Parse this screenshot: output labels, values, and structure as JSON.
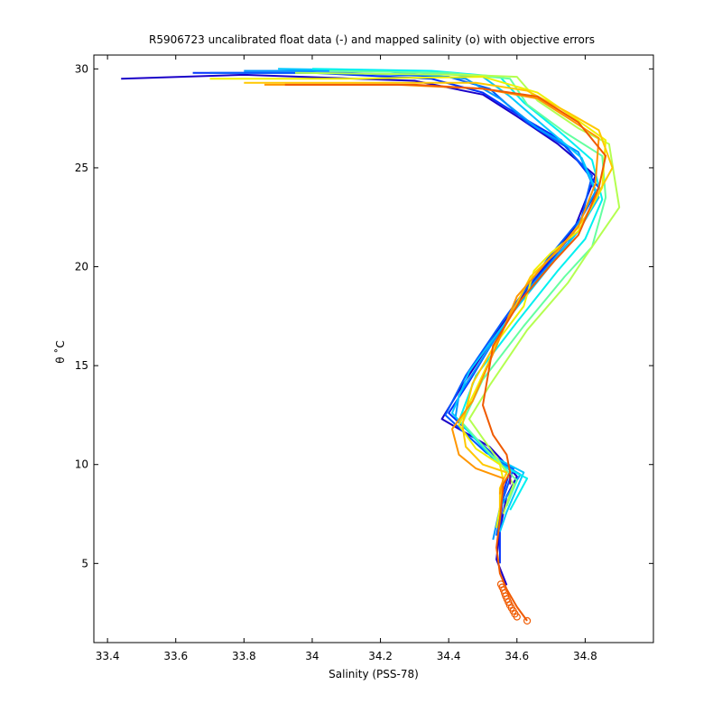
{
  "chart_data": {
    "type": "line",
    "title": "R5906723 uncalibrated float data (-) and mapped salinity (o) with objective errors",
    "xlabel": "Salinity (PSS-78)",
    "ylabel": "θ ˚C",
    "xlim": [
      33.36,
      35.0
    ],
    "ylim": [
      1.0,
      30.7
    ],
    "xticks": [
      33.4,
      33.6,
      33.8,
      34.0,
      34.2,
      34.4,
      34.6,
      34.8
    ],
    "xtick_labels": [
      "33.4",
      "33.6",
      "33.8",
      "34",
      "34.2",
      "34.4",
      "34.6",
      "34.8"
    ],
    "yticks": [
      5,
      10,
      15,
      20,
      25,
      30
    ],
    "ytick_labels": [
      "5",
      "10",
      "15",
      "20",
      "25",
      "30"
    ],
    "grid": false,
    "series": [
      {
        "color": "#1a00c8",
        "points": [
          [
            33.44,
            29.5
          ],
          [
            33.8,
            29.7
          ],
          [
            34.3,
            29.4
          ],
          [
            34.5,
            28.7
          ],
          [
            34.6,
            27.6
          ],
          [
            34.72,
            26.2
          ],
          [
            34.83,
            24.6
          ],
          [
            34.77,
            22.0
          ],
          [
            34.68,
            20.0
          ],
          [
            34.55,
            16.9
          ],
          [
            34.44,
            14.0
          ],
          [
            34.38,
            12.3
          ],
          [
            34.52,
            10.9
          ],
          [
            34.6,
            9.4
          ],
          [
            34.57,
            8.4
          ],
          [
            34.55,
            6.7
          ],
          [
            34.54,
            5.2
          ],
          [
            34.57,
            3.9
          ]
        ]
      },
      {
        "color": "#0032ff",
        "points": [
          [
            33.65,
            29.8
          ],
          [
            34.0,
            29.8
          ],
          [
            34.35,
            29.5
          ],
          [
            34.5,
            28.8
          ],
          [
            34.62,
            27.5
          ],
          [
            34.73,
            26.4
          ],
          [
            34.84,
            24.0
          ],
          [
            34.76,
            21.6
          ],
          [
            34.66,
            19.5
          ],
          [
            34.54,
            16.5
          ],
          [
            34.46,
            14.2
          ],
          [
            34.4,
            12.6
          ],
          [
            34.5,
            11.0
          ],
          [
            34.58,
            9.7
          ],
          [
            34.56,
            8.6
          ],
          [
            34.55,
            6.8
          ],
          [
            34.55,
            5.0
          ]
        ]
      },
      {
        "color": "#005aff",
        "points": [
          [
            33.7,
            29.8
          ],
          [
            34.1,
            29.8
          ],
          [
            34.4,
            29.6
          ],
          [
            34.52,
            29.0
          ],
          [
            34.63,
            27.3
          ],
          [
            34.74,
            26.1
          ],
          [
            34.82,
            24.6
          ],
          [
            34.79,
            22.5
          ],
          [
            34.69,
            20.4
          ],
          [
            34.56,
            17.3
          ],
          [
            34.45,
            14.5
          ],
          [
            34.39,
            12.5
          ],
          [
            34.51,
            10.6
          ],
          [
            34.59,
            9.8
          ],
          [
            34.56,
            8.3
          ],
          [
            34.54,
            6.4
          ]
        ]
      },
      {
        "color": "#0096ff",
        "points": [
          [
            33.8,
            29.9
          ],
          [
            34.2,
            29.9
          ],
          [
            34.45,
            29.5
          ],
          [
            34.55,
            28.5
          ],
          [
            34.66,
            27.0
          ],
          [
            34.78,
            25.8
          ],
          [
            34.83,
            23.8
          ],
          [
            34.75,
            21.2
          ],
          [
            34.64,
            19.0
          ],
          [
            34.53,
            16.2
          ],
          [
            34.43,
            13.5
          ],
          [
            34.42,
            12.4
          ],
          [
            34.53,
            10.3
          ],
          [
            34.61,
            9.5
          ],
          [
            34.55,
            7.8
          ],
          [
            34.53,
            6.2
          ]
        ]
      },
      {
        "color": "#00c8ff",
        "points": [
          [
            33.9,
            30.0
          ],
          [
            34.25,
            29.9
          ],
          [
            34.5,
            29.6
          ],
          [
            34.58,
            28.6
          ],
          [
            34.68,
            27.1
          ],
          [
            34.79,
            25.5
          ],
          [
            34.84,
            23.5
          ],
          [
            34.78,
            21.8
          ],
          [
            34.7,
            20.1
          ],
          [
            34.58,
            17.5
          ],
          [
            34.46,
            14.7
          ],
          [
            34.41,
            12.6
          ],
          [
            34.52,
            10.5
          ],
          [
            34.62,
            9.6
          ],
          [
            34.57,
            7.6
          ],
          [
            34.55,
            6.6
          ]
        ]
      },
      {
        "color": "#00f0f0",
        "points": [
          [
            34.0,
            30.0
          ],
          [
            34.35,
            29.9
          ],
          [
            34.55,
            29.6
          ],
          [
            34.62,
            28.3
          ],
          [
            34.72,
            26.9
          ],
          [
            34.82,
            25.4
          ],
          [
            34.85,
            23.4
          ],
          [
            34.8,
            21.4
          ],
          [
            34.72,
            19.8
          ],
          [
            34.6,
            17.2
          ],
          [
            34.48,
            14.5
          ],
          [
            34.43,
            12.2
          ],
          [
            34.55,
            10.0
          ],
          [
            34.63,
            9.3
          ],
          [
            34.58,
            7.7
          ]
        ]
      },
      {
        "color": "#64ffa0",
        "points": [
          [
            34.05,
            29.9
          ],
          [
            34.4,
            29.8
          ],
          [
            34.58,
            29.5
          ],
          [
            34.63,
            28.2
          ],
          [
            34.74,
            26.8
          ],
          [
            34.85,
            25.6
          ],
          [
            34.86,
            23.5
          ],
          [
            34.82,
            21.0
          ],
          [
            34.74,
            19.5
          ],
          [
            34.62,
            17.0
          ],
          [
            34.5,
            14.3
          ],
          [
            34.44,
            12.1
          ],
          [
            34.54,
            10.2
          ],
          [
            34.6,
            9.2
          ],
          [
            34.57,
            7.9
          ]
        ]
      },
      {
        "color": "#b4ff50",
        "points": [
          [
            33.95,
            29.8
          ],
          [
            34.45,
            29.7
          ],
          [
            34.6,
            29.6
          ],
          [
            34.66,
            28.4
          ],
          [
            34.78,
            27.0
          ],
          [
            34.87,
            26.2
          ],
          [
            34.9,
            23.0
          ],
          [
            34.8,
            20.5
          ],
          [
            34.75,
            19.2
          ],
          [
            34.63,
            16.8
          ],
          [
            34.52,
            14.0
          ],
          [
            34.46,
            12.3
          ],
          [
            34.55,
            10.1
          ],
          [
            34.59,
            9.0
          ],
          [
            34.56,
            7.5
          ]
        ]
      },
      {
        "color": "#f0f000",
        "points": [
          [
            33.7,
            29.5
          ],
          [
            34.1,
            29.5
          ],
          [
            34.5,
            29.6
          ],
          [
            34.66,
            28.8
          ],
          [
            34.77,
            27.5
          ],
          [
            34.86,
            26.4
          ],
          [
            34.85,
            24.0
          ],
          [
            34.78,
            21.8
          ],
          [
            34.7,
            20.7
          ],
          [
            34.65,
            19.8
          ],
          [
            34.62,
            18.0
          ],
          [
            34.55,
            16.4
          ],
          [
            34.48,
            13.8
          ],
          [
            34.43,
            12.0
          ],
          [
            34.48,
            10.8
          ],
          [
            34.55,
            10.0
          ],
          [
            34.56,
            9.2
          ],
          [
            34.55,
            7.8
          ],
          [
            34.54,
            6.8
          ]
        ]
      },
      {
        "color": "#ffc800",
        "points": [
          [
            33.8,
            29.3
          ],
          [
            34.2,
            29.3
          ],
          [
            34.48,
            29.3
          ],
          [
            34.63,
            28.9
          ],
          [
            34.75,
            27.8
          ],
          [
            34.84,
            26.9
          ],
          [
            34.88,
            25.0
          ],
          [
            34.8,
            22.5
          ],
          [
            34.72,
            20.8
          ],
          [
            34.64,
            19.5
          ],
          [
            34.55,
            16.5
          ],
          [
            34.47,
            14.1
          ],
          [
            34.44,
            12.0
          ],
          [
            34.45,
            10.9
          ],
          [
            34.5,
            10.0
          ],
          [
            34.57,
            9.6
          ],
          [
            34.55,
            8.8
          ],
          [
            34.55,
            7.6
          ]
        ]
      },
      {
        "color": "#ff9600",
        "points": [
          [
            33.86,
            29.2
          ],
          [
            34.25,
            29.2
          ],
          [
            34.5,
            29.0
          ],
          [
            34.66,
            28.5
          ],
          [
            34.76,
            27.4
          ],
          [
            34.84,
            26.5
          ],
          [
            34.83,
            24.2
          ],
          [
            34.78,
            22.0
          ],
          [
            34.7,
            20.5
          ],
          [
            34.6,
            18.5
          ],
          [
            34.54,
            16.0
          ],
          [
            34.47,
            13.2
          ],
          [
            34.41,
            11.8
          ],
          [
            34.43,
            10.5
          ],
          [
            34.48,
            9.8
          ],
          [
            34.56,
            9.3
          ],
          [
            34.55,
            8.5
          ]
        ]
      },
      {
        "color": "#f05a00",
        "points": [
          [
            33.92,
            29.2
          ],
          [
            34.3,
            29.2
          ],
          [
            34.5,
            29.0
          ],
          [
            34.66,
            28.6
          ],
          [
            34.78,
            27.3
          ],
          [
            34.86,
            25.6
          ],
          [
            34.84,
            24.0
          ],
          [
            34.78,
            21.6
          ],
          [
            34.71,
            20.3
          ],
          [
            34.61,
            18.3
          ],
          [
            34.53,
            16.0
          ],
          [
            34.5,
            13.0
          ],
          [
            34.53,
            11.5
          ],
          [
            34.57,
            10.5
          ],
          [
            34.58,
            9.6
          ],
          [
            34.56,
            9.0
          ],
          [
            34.55,
            7.2
          ],
          [
            34.54,
            5.8
          ],
          [
            34.55,
            4.5
          ],
          [
            34.57,
            3.7
          ],
          [
            34.6,
            2.8
          ],
          [
            34.63,
            2.1
          ]
        ]
      }
    ],
    "markers": {
      "color": "#f05a00",
      "symbol": "circle",
      "points": [
        [
          34.553,
          3.95
        ],
        [
          34.557,
          3.8
        ],
        [
          34.561,
          3.65
        ],
        [
          34.564,
          3.5
        ],
        [
          34.567,
          3.35
        ],
        [
          34.571,
          3.2
        ],
        [
          34.575,
          3.05
        ],
        [
          34.579,
          2.9
        ],
        [
          34.584,
          2.75
        ],
        [
          34.589,
          2.6
        ],
        [
          34.594,
          2.45
        ],
        [
          34.6,
          2.3
        ],
        [
          34.63,
          2.1
        ]
      ]
    },
    "error_bars": {
      "color": "#800080",
      "points": [
        [
          34.58,
          9.5
        ],
        [
          34.58,
          9.0
        ]
      ]
    }
  }
}
